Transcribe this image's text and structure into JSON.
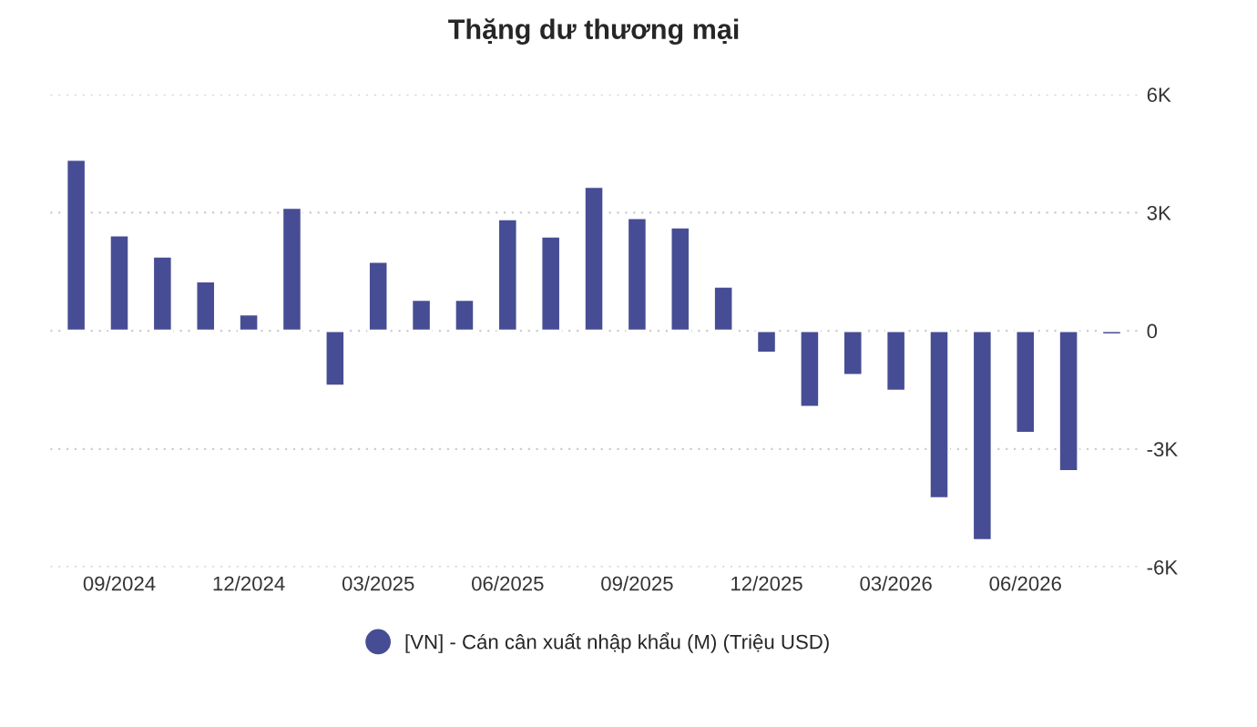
{
  "chart_data": {
    "type": "bar",
    "title": "Thặng dư thương mại",
    "categories": [
      null,
      "09/2024",
      null,
      null,
      "12/2024",
      null,
      null,
      "03/2025",
      null,
      null,
      "06/2025",
      null,
      null,
      "09/2025",
      null,
      null,
      "12/2025",
      null,
      null,
      "03/2026",
      null,
      null,
      "06/2026",
      null,
      null
    ],
    "series": [
      {
        "name": "[VN] - Cán cân xuất nhập khẩu (M) (Triệu USD)",
        "color": "#474d94",
        "values": [
          4350,
          2430,
          1890,
          1260,
          420,
          3130,
          -1400,
          1760,
          790,
          790,
          2840,
          2400,
          3660,
          2870,
          2630,
          1130,
          -560,
          -1940,
          -1130,
          -1530,
          -4260,
          -5320,
          -2600,
          -3570,
          -100
        ]
      }
    ],
    "ylim": [
      -6000,
      6000
    ],
    "yticks": [
      {
        "value": -6000,
        "label": "-6K"
      },
      {
        "value": -3000,
        "label": "-3K"
      },
      0,
      {
        "value": 3000,
        "label": "3K"
      },
      {
        "value": 6000,
        "label": "6K"
      }
    ],
    "grid": "y",
    "legend": "bottom"
  }
}
